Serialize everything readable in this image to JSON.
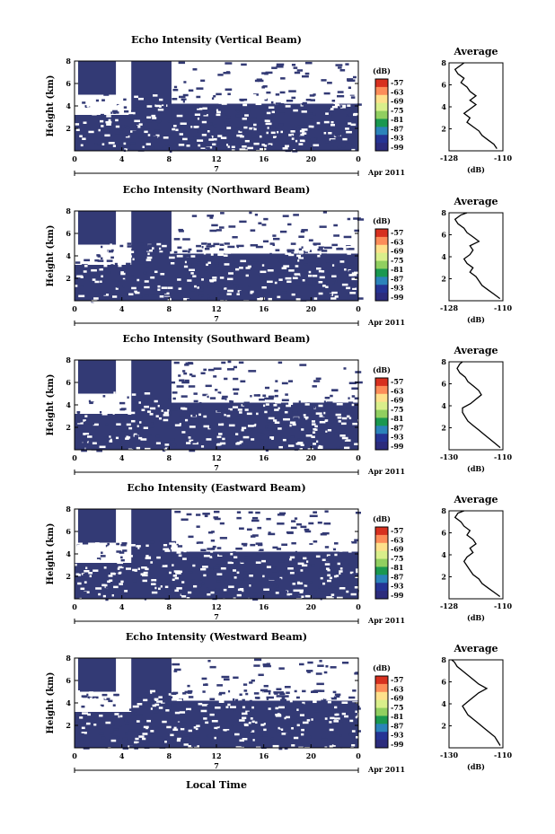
{
  "figure": {
    "xlabel_bottom": "Local Time",
    "date_label": "Apr 2011",
    "day_label": "7",
    "colorbar_unit": "(dB)",
    "colorbar_ticks": [
      "-57",
      "-63",
      "-69",
      "-75",
      "-81",
      "-87",
      "-93",
      "-99"
    ],
    "colorbar_colors": [
      "#d7301f",
      "#fc8d59",
      "#fee08b",
      "#d9ef8b",
      "#91cf60",
      "#1a9850",
      "#2b83ba",
      "#253494",
      "#2c2c7c"
    ],
    "fill_color": "#333a75",
    "rows": [
      {
        "title": "Echo Intensity (Vertical Beam)",
        "profile_xticks": [
          "-128",
          "-110"
        ],
        "profile_xlabel": "(dB)",
        "profile_title": "Average"
      },
      {
        "title": "Echo Intensity (Northward Beam)",
        "profile_xticks": [
          "-128",
          "-110"
        ],
        "profile_xlabel": "(dB)",
        "profile_title": "Average"
      },
      {
        "title": "Echo Intensity (Southward Beam)",
        "profile_xticks": [
          "-130",
          "-110"
        ],
        "profile_xlabel": "(dB)",
        "profile_title": "Average"
      },
      {
        "title": "Echo Intensity (Eastward Beam)",
        "profile_xticks": [
          "-128",
          "-110"
        ],
        "profile_xlabel": "(dB)",
        "profile_title": "Average"
      },
      {
        "title": "Echo Intensity (Westward Beam)",
        "profile_xticks": [
          "-130",
          "-110"
        ],
        "profile_xlabel": "(dB)",
        "profile_title": "Average"
      }
    ]
  },
  "chart_data": [
    {
      "type": "heatmap",
      "title": "Echo Intensity (Vertical Beam)",
      "xlabel": "",
      "ylabel": "Height (km)",
      "xticks": [
        "0",
        "4",
        "8",
        "12",
        "16",
        "20",
        "0"
      ],
      "yticks": [
        "2",
        "4",
        "6",
        "8"
      ],
      "xlim": [
        0,
        24
      ],
      "ylim": [
        0,
        8
      ],
      "colorbar": {
        "label": "(dB)",
        "ticks": [
          -57,
          -63,
          -69,
          -75,
          -81,
          -87,
          -93,
          -99
        ]
      },
      "profile": {
        "title": "Average",
        "xlabel": "(dB)",
        "xlim": [
          -128,
          -110
        ],
        "ylim": [
          0,
          8
        ],
        "x": [
          -112,
          -113,
          -115,
          -117,
          -118,
          -120,
          -122,
          -121,
          -123,
          -121,
          -119,
          -121,
          -119,
          -121,
          -122,
          -124,
          -123,
          -125,
          -126,
          -124,
          -123
        ],
        "y": [
          0.2,
          0.6,
          1.0,
          1.4,
          1.8,
          2.2,
          2.6,
          3.0,
          3.4,
          3.8,
          4.2,
          4.6,
          5.0,
          5.4,
          5.8,
          6.2,
          6.6,
          7.0,
          7.4,
          7.8,
          8.0
        ]
      }
    },
    {
      "type": "heatmap",
      "title": "Echo Intensity (Northward Beam)",
      "xlabel": "",
      "ylabel": "Height (km)",
      "xticks": [
        "0",
        "4",
        "8",
        "12",
        "16",
        "20",
        "0"
      ],
      "yticks": [
        "2",
        "4",
        "6",
        "8"
      ],
      "xlim": [
        0,
        24
      ],
      "ylim": [
        0,
        8
      ],
      "colorbar": {
        "label": "(dB)",
        "ticks": [
          -57,
          -63,
          -69,
          -75,
          -81,
          -87,
          -93,
          -99
        ]
      },
      "profile": {
        "title": "Average",
        "xlabel": "(dB)",
        "xlim": [
          -128,
          -110
        ],
        "ylim": [
          0,
          8
        ],
        "x": [
          -111,
          -113,
          -115,
          -117,
          -118,
          -119,
          -121,
          -120,
          -122,
          -123,
          -121,
          -120,
          -121,
          -118,
          -120,
          -122,
          -123,
          -125,
          -126,
          -124,
          -122
        ],
        "y": [
          0.2,
          0.6,
          1.0,
          1.4,
          1.8,
          2.2,
          2.6,
          3.0,
          3.4,
          3.8,
          4.2,
          4.6,
          5.0,
          5.4,
          5.8,
          6.2,
          6.6,
          7.0,
          7.4,
          7.8,
          8.0
        ]
      }
    },
    {
      "type": "heatmap",
      "title": "Echo Intensity (Southward Beam)",
      "xlabel": "",
      "ylabel": "Height (km)",
      "xticks": [
        "0",
        "4",
        "8",
        "12",
        "16",
        "20",
        "0"
      ],
      "yticks": [
        "2",
        "4",
        "6",
        "8"
      ],
      "xlim": [
        0,
        24
      ],
      "ylim": [
        0,
        8
      ],
      "colorbar": {
        "label": "(dB)",
        "ticks": [
          -57,
          -63,
          -69,
          -75,
          -81,
          -87,
          -93,
          -99
        ]
      },
      "profile": {
        "title": "Average",
        "xlabel": "(dB)",
        "xlim": [
          -130,
          -110
        ],
        "ylim": [
          0,
          8
        ],
        "x": [
          -111,
          -113,
          -115,
          -117,
          -119,
          -121,
          -123,
          -124,
          -125,
          -125,
          -122,
          -120,
          -118,
          -119,
          -121,
          -123,
          -124,
          -126,
          -127,
          -126,
          -125
        ],
        "y": [
          0.2,
          0.6,
          1.0,
          1.4,
          1.8,
          2.2,
          2.6,
          3.0,
          3.4,
          3.8,
          4.2,
          4.6,
          5.0,
          5.4,
          5.8,
          6.2,
          6.6,
          7.0,
          7.4,
          7.8,
          8.0
        ]
      }
    },
    {
      "type": "heatmap",
      "title": "Echo Intensity (Eastward Beam)",
      "xlabel": "",
      "ylabel": "Height (km)",
      "xticks": [
        "0",
        "4",
        "8",
        "12",
        "16",
        "20",
        "0"
      ],
      "yticks": [
        "2",
        "4",
        "6",
        "8"
      ],
      "xlim": [
        0,
        24
      ],
      "ylim": [
        0,
        8
      ],
      "colorbar": {
        "label": "(dB)",
        "ticks": [
          -57,
          -63,
          -69,
          -75,
          -81,
          -87,
          -93,
          -99
        ]
      },
      "profile": {
        "title": "Average",
        "xlabel": "(dB)",
        "xlim": [
          -128,
          -110
        ],
        "ylim": [
          0,
          8
        ],
        "x": [
          -111,
          -113,
          -115,
          -117,
          -118,
          -120,
          -121,
          -122,
          -123,
          -122,
          -120,
          -121,
          -119,
          -120,
          -122,
          -121,
          -123,
          -124,
          -126,
          -125,
          -123
        ],
        "y": [
          0.2,
          0.6,
          1.0,
          1.4,
          1.8,
          2.2,
          2.6,
          3.0,
          3.4,
          3.8,
          4.2,
          4.6,
          5.0,
          5.4,
          5.8,
          6.2,
          6.6,
          7.0,
          7.4,
          7.8,
          8.0
        ]
      }
    },
    {
      "type": "heatmap",
      "title": "Echo Intensity (Westward Beam)",
      "xlabel": "Local Time",
      "ylabel": "Height (km)",
      "xticks": [
        "0",
        "4",
        "8",
        "12",
        "16",
        "20",
        "0"
      ],
      "yticks": [
        "2",
        "4",
        "6",
        "8"
      ],
      "xlim": [
        0,
        24
      ],
      "ylim": [
        0,
        8
      ],
      "colorbar": {
        "label": "(dB)",
        "ticks": [
          -57,
          -63,
          -69,
          -75,
          -81,
          -87,
          -93,
          -99
        ]
      },
      "profile": {
        "title": "Average",
        "xlabel": "(dB)",
        "xlim": [
          -130,
          -110
        ],
        "ylim": [
          0,
          8
        ],
        "x": [
          -111,
          -112,
          -113,
          -115,
          -117,
          -119,
          -121,
          -123,
          -124,
          -125,
          -123,
          -121,
          -119,
          -116,
          -119,
          -121,
          -123,
          -125,
          -127,
          -128,
          -129
        ],
        "y": [
          0.2,
          0.6,
          1.0,
          1.4,
          1.8,
          2.2,
          2.6,
          3.0,
          3.4,
          3.8,
          4.2,
          4.6,
          5.0,
          5.4,
          5.8,
          6.2,
          6.6,
          7.0,
          7.4,
          7.8,
          8.0
        ]
      }
    }
  ]
}
